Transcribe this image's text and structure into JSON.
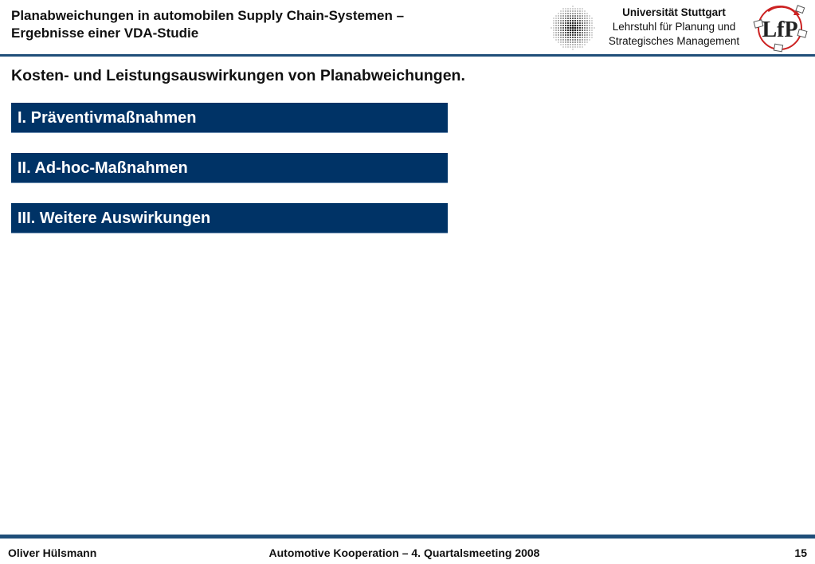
{
  "header": {
    "title_line1": "Planabweichungen in automobilen Supply Chain-Systemen –",
    "title_line2": "Ergebnisse einer VDA-Studie",
    "university": "Universität Stuttgart",
    "chair_line1": "Lehrstuhl für Planung und",
    "chair_line2": "Strategisches Management",
    "logo_letters": "LfP"
  },
  "subtitle": "Kosten- und Leistungsauswirkungen von Planabweichungen.",
  "sections": [
    {
      "label": "I. Präventivmaßnahmen"
    },
    {
      "label": "II. Ad-hoc-Maßnahmen"
    },
    {
      "label": "III. Weitere Auswirkungen"
    }
  ],
  "footer": {
    "author": "Oliver Hülsmann",
    "event": "Automotive Kooperation – 4. Quartalsmeeting 2008",
    "page": "15"
  },
  "colors": {
    "section_bar": "#003366",
    "rule": "#1f4e79",
    "logo_red": "#cc2222"
  }
}
